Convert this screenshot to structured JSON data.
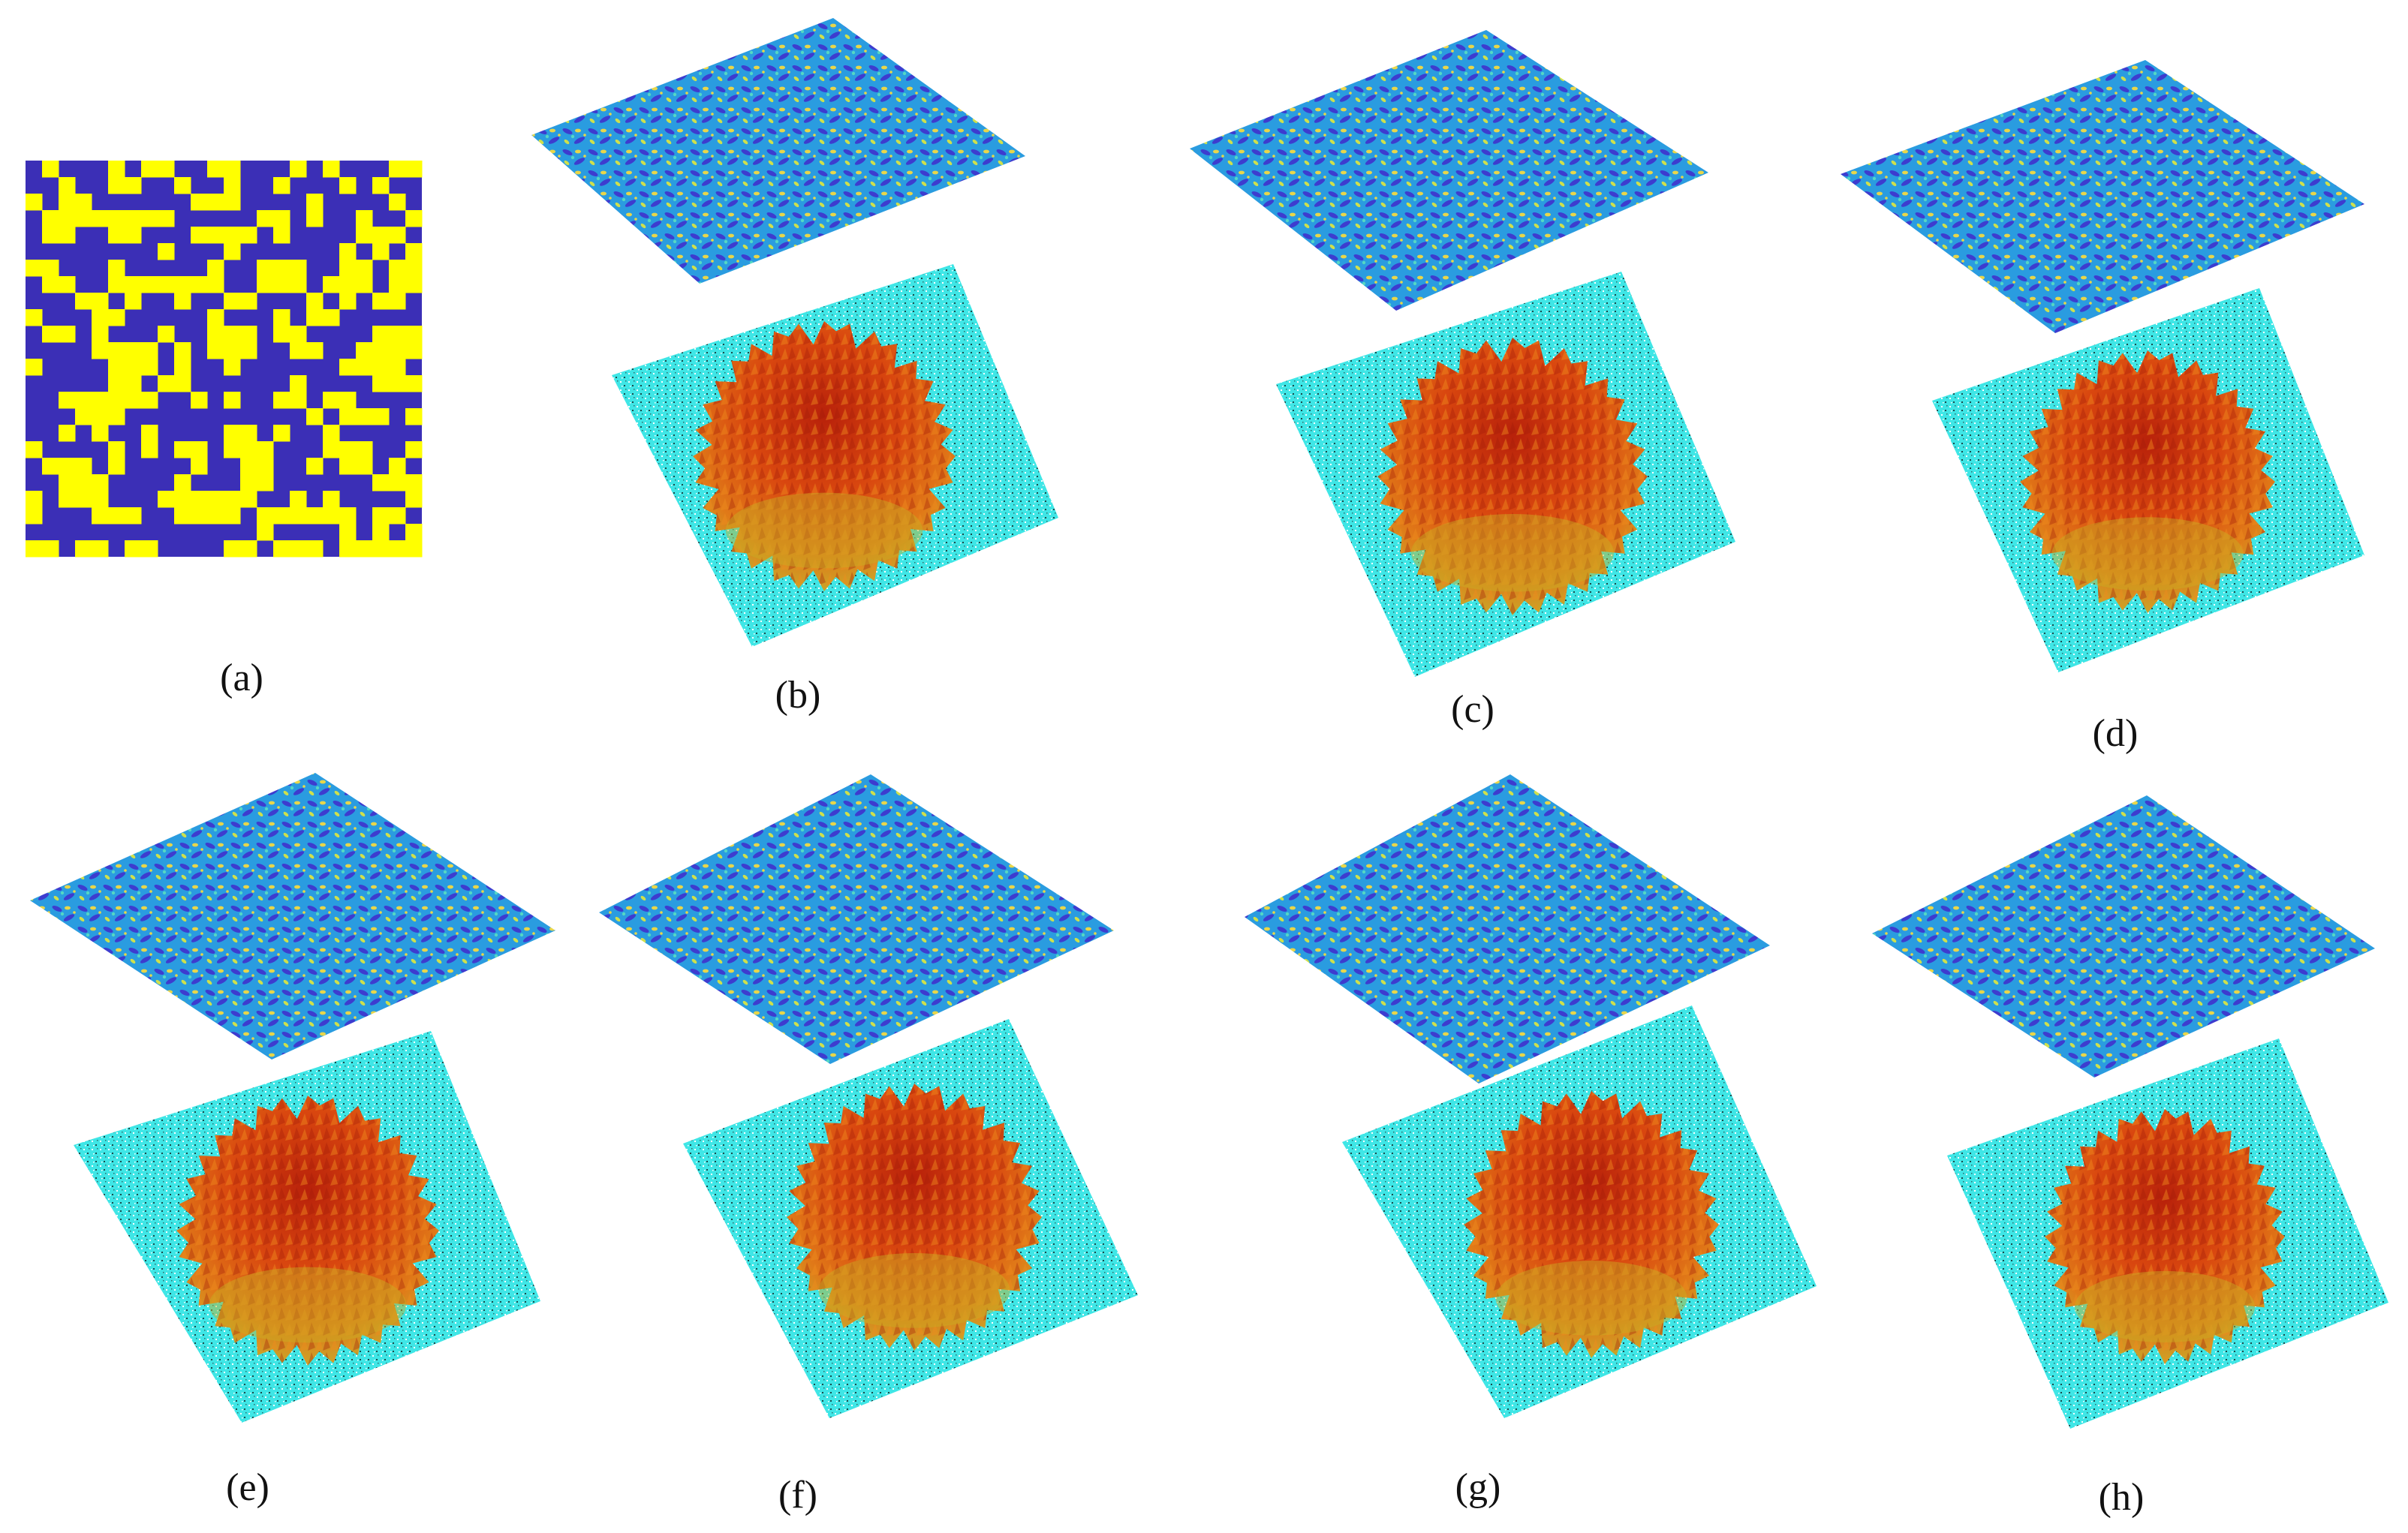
{
  "panel_labels": {
    "a": "(a)",
    "b": "(b)",
    "c": "(c)",
    "d": "(d)",
    "e": "(e)",
    "f": "(f)",
    "g": "(g)",
    "h": "(h)"
  },
  "colors": {
    "binary_mask_blue": "#3b2fb6",
    "binary_mask_yellow": "#ffff00",
    "phase_plane_base": "#2a9ce0",
    "phase_plane_dark": "#3d3ccf",
    "phase_plane_light": "#e8d64a",
    "sample_grid": "#3fe6e6",
    "object_red": "#d4380c",
    "object_orange": "#e86a12",
    "object_yellow": "#c7b024"
  }
}
